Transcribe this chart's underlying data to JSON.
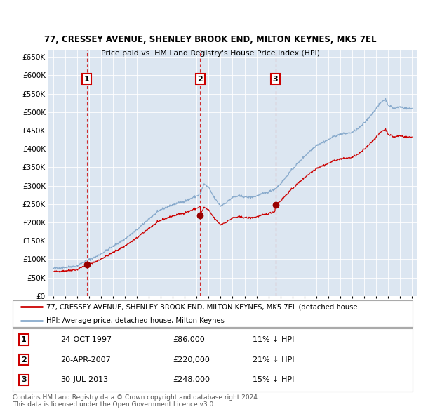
{
  "title1": "77, CRESSEY AVENUE, SHENLEY BROOK END, MILTON KEYNES, MK5 7EL",
  "title2": "Price paid vs. HM Land Registry's House Price Index (HPI)",
  "plot_bg_color": "#dce6f1",
  "ylim": [
    0,
    670000
  ],
  "yticks": [
    0,
    50000,
    100000,
    150000,
    200000,
    250000,
    300000,
    350000,
    400000,
    450000,
    500000,
    550000,
    600000,
    650000
  ],
  "sales": [
    {
      "index": 1,
      "date": "24-OCT-1997",
      "price": 86000,
      "year": 1997.81,
      "pct": "11%",
      "dir": "↓"
    },
    {
      "index": 2,
      "date": "20-APR-2007",
      "price": 220000,
      "year": 2007.3,
      "pct": "21%",
      "dir": "↓"
    },
    {
      "index": 3,
      "date": "30-JUL-2013",
      "price": 248000,
      "year": 2013.58,
      "pct": "15%",
      "dir": "↓"
    }
  ],
  "red_line_color": "#cc0000",
  "blue_line_color": "#88aacc",
  "dot_color": "#990000",
  "legend_label_red": "77, CRESSEY AVENUE, SHENLEY BROOK END, MILTON KEYNES, MK5 7EL (detached house",
  "legend_label_blue": "HPI: Average price, detached house, Milton Keynes",
  "footer1": "Contains HM Land Registry data © Crown copyright and database right 2024.",
  "footer2": "This data is licensed under the Open Government Licence v3.0."
}
